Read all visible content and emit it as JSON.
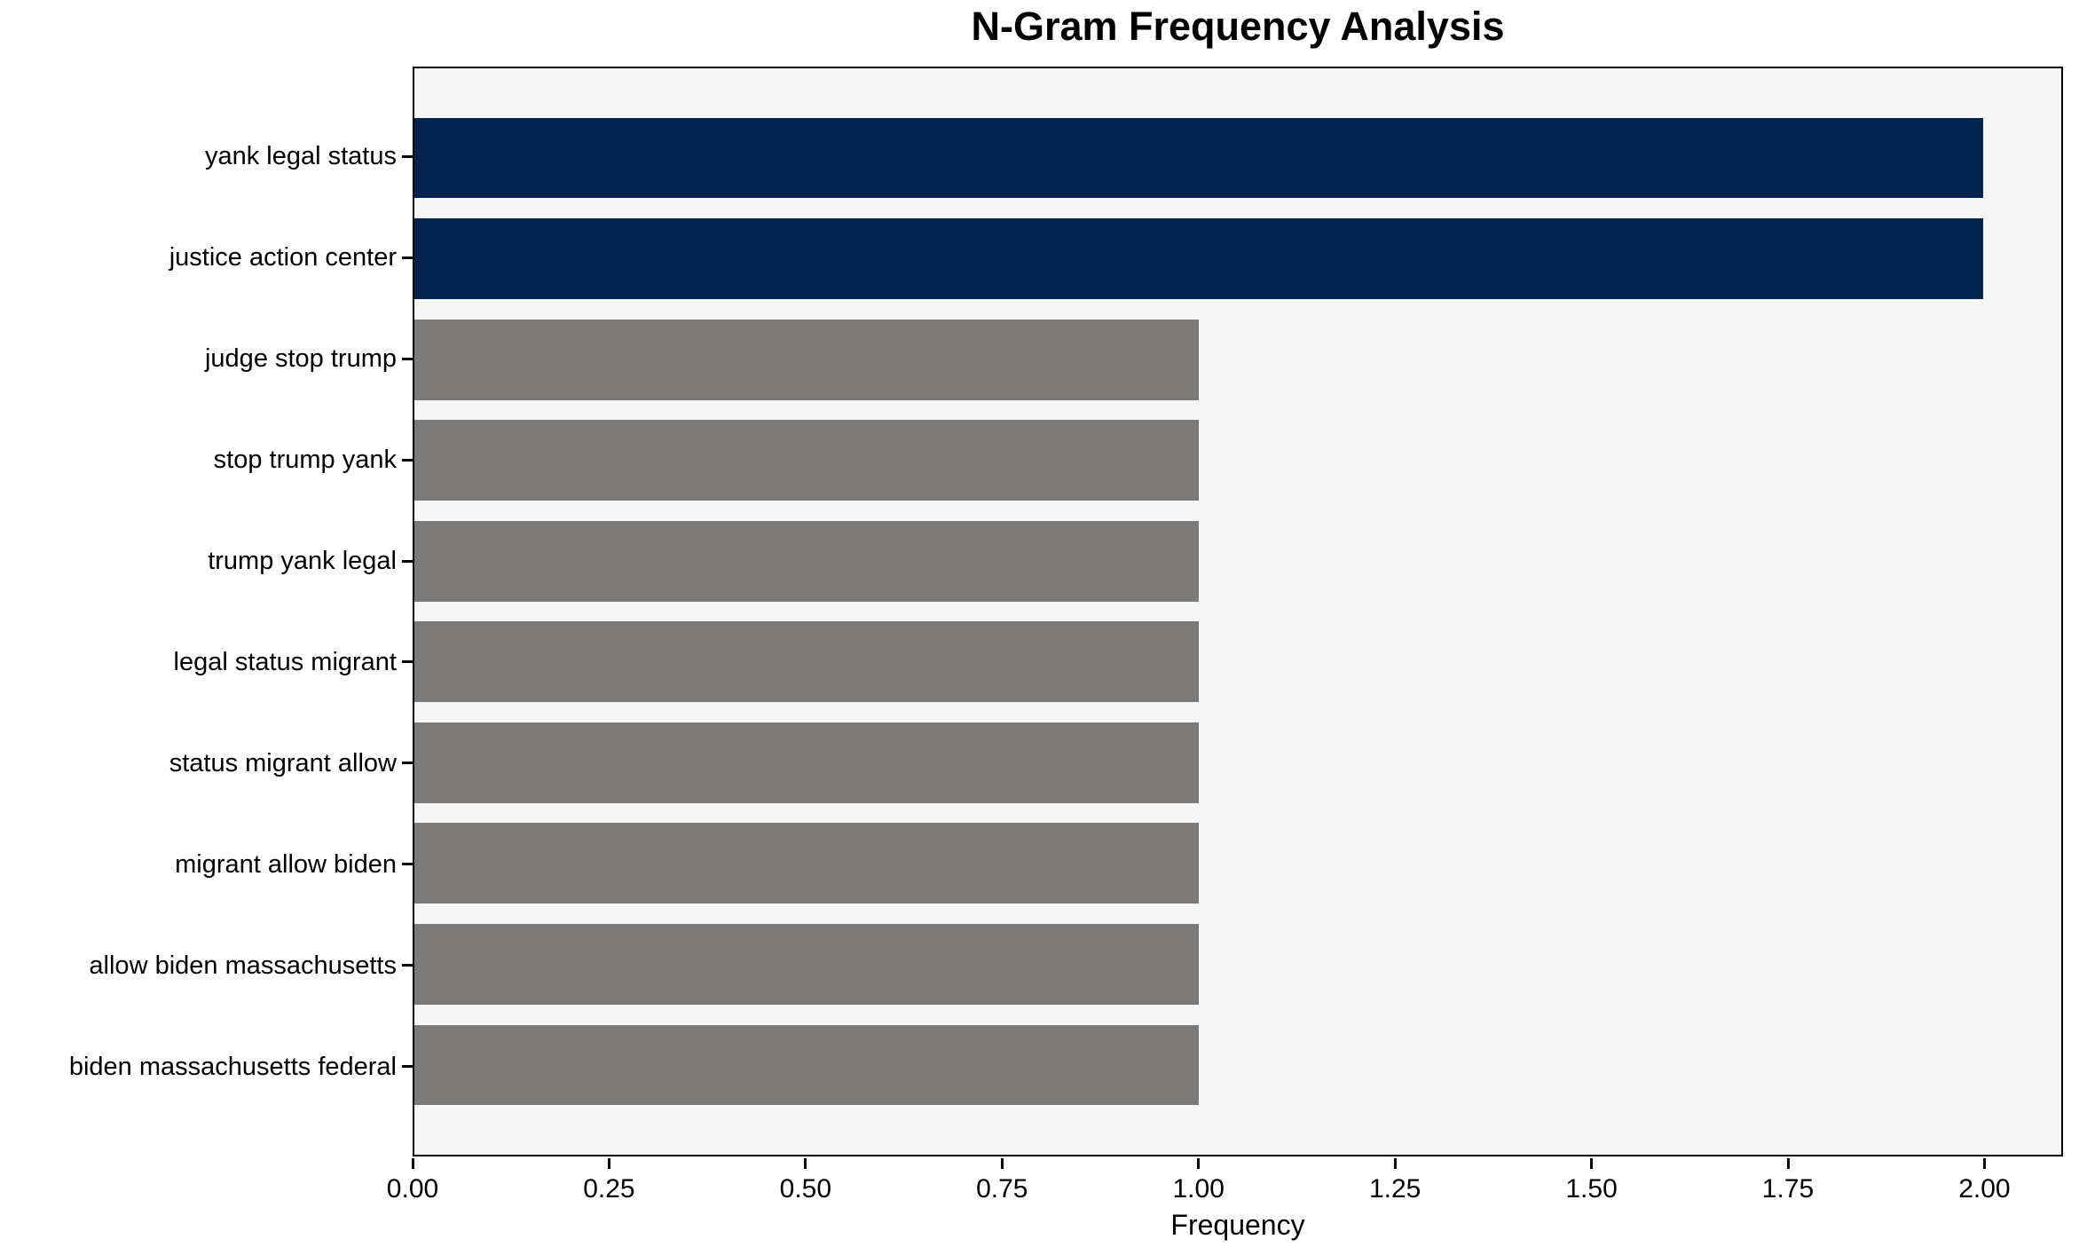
{
  "chart_data": {
    "type": "bar",
    "orientation": "horizontal",
    "title": "N-Gram Frequency Analysis",
    "xlabel": "Frequency",
    "ylabel": "",
    "categories": [
      "yank legal status",
      "justice action center",
      "judge stop trump",
      "stop trump yank",
      "trump yank legal",
      "legal status migrant",
      "status migrant allow",
      "migrant allow biden",
      "allow biden massachusetts",
      "biden massachusetts federal"
    ],
    "values": [
      2,
      2,
      1,
      1,
      1,
      1,
      1,
      1,
      1,
      1
    ],
    "bar_colors": [
      "#02234d",
      "#02234d",
      "#7b7a78",
      "#7b7a78",
      "#7b7a78",
      "#7b7a78",
      "#7b7a78",
      "#7b7a78",
      "#7b7a78",
      "#7b7a78"
    ],
    "xlim": [
      0,
      2.1
    ],
    "xticks": [
      0,
      0.25,
      0.5,
      0.75,
      1.0,
      1.25,
      1.5,
      1.75,
      2.0
    ],
    "xtick_labels": [
      "0.00",
      "0.25",
      "0.50",
      "0.75",
      "1.00",
      "1.25",
      "1.50",
      "1.75",
      "2.00"
    ],
    "grid": false,
    "legend": "none",
    "colors": {
      "highlight_bar": "#02234d",
      "default_bar": "#7b7a78",
      "plot_background": "#f6f6f7",
      "figure_background": "#ffffff",
      "spine": "#000000",
      "text": "#000000"
    }
  }
}
